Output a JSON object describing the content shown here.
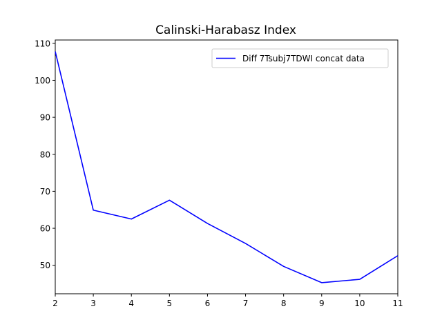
{
  "chart_data": {
    "type": "line",
    "title": "Calinski-Harabasz Index",
    "xlabel": "",
    "ylabel": "",
    "x": [
      2,
      3,
      4,
      5,
      6,
      7,
      8,
      9,
      10,
      11
    ],
    "xlim": [
      2,
      11
    ],
    "ylim": [
      42.3,
      110.9
    ],
    "xticks": [
      2,
      3,
      4,
      5,
      6,
      7,
      8,
      9,
      10,
      11
    ],
    "yticks": [
      50,
      60,
      70,
      80,
      90,
      100,
      110
    ],
    "grid": false,
    "legend_position": "top-right",
    "series": [
      {
        "name": "Diff 7Tsubj7TDWI concat data",
        "color": "#0000ff",
        "values": [
          107.8,
          64.9,
          62.5,
          67.6,
          61.3,
          55.9,
          49.7,
          45.3,
          46.2,
          52.6
        ]
      }
    ]
  }
}
